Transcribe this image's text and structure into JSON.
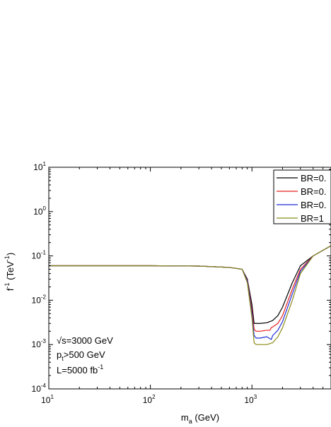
{
  "chart_data": {
    "type": "line",
    "x_scale": "log",
    "y_scale": "log",
    "xlim": [
      10,
      6000
    ],
    "ylim": [
      0.0001,
      10
    ],
    "xlabel": "m_a (GeV)",
    "ylabel": "f⁻¹ (TeV⁻¹)",
    "x_ticks": [
      {
        "value": 10,
        "base": "10",
        "exp": "1"
      },
      {
        "value": 100,
        "base": "10",
        "exp": "2"
      },
      {
        "value": 1000,
        "base": "10",
        "exp": "3"
      }
    ],
    "y_ticks": [
      {
        "value": 10,
        "base": "10",
        "exp": "1"
      },
      {
        "value": 1,
        "base": "10",
        "exp": "0"
      },
      {
        "value": 0.1,
        "base": "10",
        "exp": "-1"
      },
      {
        "value": 0.01,
        "base": "10",
        "exp": "-2"
      },
      {
        "value": 0.001,
        "base": "10",
        "exp": "-3"
      },
      {
        "value": 0.0001,
        "base": "10",
        "exp": "-4"
      }
    ],
    "annotations": [
      "√s=3000 GeV",
      "p_t>500 GeV",
      "L=5000 fb⁻¹"
    ],
    "legend_position": "top-right",
    "grid": false,
    "series": [
      {
        "name": "BR=0.",
        "color": "#000000",
        "x": [
          10,
          100,
          300,
          600,
          800,
          900,
          1000,
          1050,
          1100,
          1200,
          1400,
          1600,
          1800,
          2000,
          2500,
          3000,
          4000,
          6000
        ],
        "y": [
          0.06,
          0.06,
          0.059,
          0.055,
          0.05,
          0.03,
          0.008,
          0.003,
          0.003,
          0.003,
          0.0031,
          0.0035,
          0.0045,
          0.007,
          0.025,
          0.06,
          0.1,
          0.17
        ]
      },
      {
        "name": "BR=0.",
        "color": "#e8201e",
        "x": [
          10,
          100,
          300,
          600,
          800,
          900,
          1000,
          1050,
          1100,
          1200,
          1400,
          1500,
          1550,
          1600,
          1800,
          2000,
          2500,
          3000,
          4000,
          6000
        ],
        "y": [
          0.06,
          0.06,
          0.059,
          0.055,
          0.05,
          0.028,
          0.006,
          0.0022,
          0.002,
          0.002,
          0.0021,
          0.0021,
          0.0024,
          0.0025,
          0.003,
          0.0045,
          0.018,
          0.05,
          0.1,
          0.17
        ]
      },
      {
        "name": "BR=0.",
        "color": "#1f2fd8",
        "x": [
          10,
          100,
          300,
          600,
          800,
          900,
          1000,
          1050,
          1100,
          1200,
          1400,
          1550,
          1600,
          1800,
          2000,
          2500,
          3000,
          4000,
          6000
        ],
        "y": [
          0.06,
          0.06,
          0.059,
          0.055,
          0.05,
          0.027,
          0.005,
          0.0016,
          0.0014,
          0.0014,
          0.0015,
          0.0013,
          0.0016,
          0.0021,
          0.0033,
          0.014,
          0.045,
          0.1,
          0.17
        ]
      },
      {
        "name": "BR=1",
        "color": "#8b8b1a",
        "x": [
          10,
          100,
          300,
          600,
          800,
          900,
          1000,
          1050,
          1100,
          1200,
          1400,
          1600,
          1800,
          2000,
          2500,
          3000,
          4000,
          6000
        ],
        "y": [
          0.06,
          0.06,
          0.059,
          0.055,
          0.05,
          0.025,
          0.004,
          0.0011,
          0.001,
          0.001,
          0.001,
          0.0011,
          0.0015,
          0.0024,
          0.01,
          0.04,
          0.1,
          0.17
        ]
      }
    ]
  }
}
